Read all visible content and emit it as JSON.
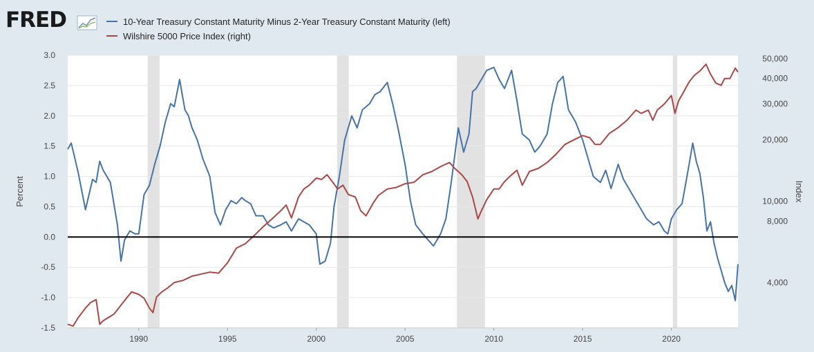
{
  "brand": {
    "logo_text": "FRED",
    "logo_icon": "chart-line-icon"
  },
  "chart_data": {
    "type": "line",
    "title": "",
    "xlim": [
      1986.0,
      2023.75
    ],
    "ylim_left": [
      -1.5,
      3.0
    ],
    "ylim_right_log": [
      2400,
      52000
    ],
    "grid": true,
    "legend_position": "top-left",
    "ylabel_left": "Percent",
    "ylabel_right": "Index",
    "x_tick_labels": [
      {
        "x": 1990,
        "label": "1990"
      },
      {
        "x": 1995,
        "label": "1995"
      },
      {
        "x": 2000,
        "label": "2000"
      },
      {
        "x": 2005,
        "label": "2005"
      },
      {
        "x": 2010,
        "label": "2010"
      },
      {
        "x": 2015,
        "label": "2015"
      },
      {
        "x": 2020,
        "label": "2020"
      }
    ],
    "y_left_ticks": [
      {
        "v": 3.0,
        "label": "3.0"
      },
      {
        "v": 2.5,
        "label": "2.5"
      },
      {
        "v": 2.0,
        "label": "2.0"
      },
      {
        "v": 1.5,
        "label": "1.5"
      },
      {
        "v": 1.0,
        "label": "1.0"
      },
      {
        "v": 0.5,
        "label": "0.5"
      },
      {
        "v": 0.0,
        "label": "0.0"
      },
      {
        "v": -0.5,
        "label": "-0.5"
      },
      {
        "v": -1.0,
        "label": "-1.0"
      },
      {
        "v": -1.5,
        "label": "-1.5"
      }
    ],
    "y_right_ticks": [
      {
        "v": 50000,
        "label": "50,000"
      },
      {
        "v": 40000,
        "label": "40,000"
      },
      {
        "v": 30000,
        "label": "30,000"
      },
      {
        "v": 20000,
        "label": "20,000"
      },
      {
        "v": 10000,
        "label": "10,000"
      },
      {
        "v": 8000,
        "label": "8,000"
      },
      {
        "v": 4000,
        "label": "4,000"
      }
    ],
    "recessions": [
      [
        1990.5,
        1991.17
      ],
      [
        2001.17,
        2001.83
      ],
      [
        2007.92,
        2009.5
      ],
      [
        2020.08,
        2020.33
      ]
    ],
    "zero_line": 0,
    "series": [
      {
        "name": "10-Year Treasury Constant Maturity Minus 2-Year Treasury Constant Maturity (left)",
        "axis": "left",
        "color": "#4572a7",
        "x": [
          1986.0,
          1986.2,
          1986.4,
          1986.6,
          1987.0,
          1987.2,
          1987.4,
          1987.6,
          1987.8,
          1988.0,
          1988.4,
          1988.8,
          1989.0,
          1989.2,
          1989.5,
          1989.8,
          1990.0,
          1990.3,
          1990.6,
          1990.9,
          1991.2,
          1991.5,
          1991.8,
          1992.0,
          1992.3,
          1992.6,
          1992.8,
          1993.0,
          1993.3,
          1993.6,
          1994.0,
          1994.3,
          1994.6,
          1994.9,
          1995.2,
          1995.5,
          1995.8,
          1996.0,
          1996.3,
          1996.6,
          1997.0,
          1997.3,
          1997.6,
          1998.0,
          1998.3,
          1998.6,
          1999.0,
          1999.3,
          1999.6,
          2000.0,
          2000.2,
          2000.5,
          2000.8,
          2001.0,
          2001.3,
          2001.6,
          2002.0,
          2002.3,
          2002.6,
          2003.0,
          2003.3,
          2003.6,
          2004.0,
          2004.3,
          2004.6,
          2005.0,
          2005.3,
          2005.6,
          2006.0,
          2006.3,
          2006.6,
          2007.0,
          2007.3,
          2007.6,
          2008.0,
          2008.3,
          2008.6,
          2008.8,
          2009.0,
          2009.3,
          2009.6,
          2010.0,
          2010.3,
          2010.6,
          2011.0,
          2011.3,
          2011.6,
          2012.0,
          2012.3,
          2012.6,
          2013.0,
          2013.3,
          2013.6,
          2013.9,
          2014.2,
          2014.6,
          2015.0,
          2015.3,
          2015.6,
          2016.0,
          2016.3,
          2016.6,
          2017.0,
          2017.3,
          2017.6,
          2018.0,
          2018.3,
          2018.6,
          2019.0,
          2019.3,
          2019.6,
          2019.8,
          2020.0,
          2020.3,
          2020.6,
          2021.0,
          2021.2,
          2021.4,
          2021.6,
          2021.8,
          2022.0,
          2022.2,
          2022.4,
          2022.6,
          2022.8,
          2023.0,
          2023.2,
          2023.4,
          2023.6,
          2023.75
        ],
        "values": [
          1.45,
          1.55,
          1.3,
          1.05,
          0.45,
          0.7,
          0.95,
          0.9,
          1.25,
          1.1,
          0.9,
          0.2,
          -0.4,
          -0.05,
          0.1,
          0.05,
          0.05,
          0.7,
          0.85,
          1.2,
          1.5,
          1.9,
          2.2,
          2.15,
          2.6,
          2.1,
          2.0,
          1.8,
          1.6,
          1.3,
          1.0,
          0.4,
          0.2,
          0.45,
          0.6,
          0.55,
          0.65,
          0.6,
          0.55,
          0.35,
          0.35,
          0.2,
          0.15,
          0.2,
          0.25,
          0.1,
          0.3,
          0.25,
          0.2,
          0.05,
          -0.45,
          -0.4,
          -0.1,
          0.5,
          1.0,
          1.6,
          2.0,
          1.8,
          2.1,
          2.2,
          2.35,
          2.4,
          2.55,
          2.2,
          1.8,
          1.2,
          0.6,
          0.2,
          0.05,
          -0.05,
          -0.15,
          0.05,
          0.3,
          0.9,
          1.8,
          1.4,
          1.7,
          2.4,
          2.45,
          2.6,
          2.75,
          2.8,
          2.6,
          2.45,
          2.75,
          2.25,
          1.7,
          1.6,
          1.4,
          1.5,
          1.7,
          2.2,
          2.55,
          2.65,
          2.1,
          1.9,
          1.6,
          1.3,
          1.0,
          0.9,
          1.1,
          0.8,
          1.2,
          0.95,
          0.8,
          0.6,
          0.45,
          0.3,
          0.2,
          0.25,
          0.1,
          0.05,
          0.3,
          0.45,
          0.55,
          1.2,
          1.55,
          1.25,
          1.05,
          0.65,
          0.1,
          0.25,
          -0.1,
          -0.35,
          -0.55,
          -0.75,
          -0.9,
          -0.8,
          -1.05,
          -0.45
        ]
      },
      {
        "name": "Wilshire 5000 Price Index (right)",
        "axis": "right",
        "color": "#aa4643",
        "x": [
          1986.0,
          1986.3,
          1986.6,
          1987.0,
          1987.3,
          1987.6,
          1987.8,
          1988.0,
          1988.3,
          1988.6,
          1989.0,
          1989.3,
          1989.6,
          1990.0,
          1990.3,
          1990.6,
          1990.8,
          1991.0,
          1991.3,
          1991.6,
          1992.0,
          1992.5,
          1993.0,
          1993.5,
          1994.0,
          1994.5,
          1995.0,
          1995.5,
          1996.0,
          1996.5,
          1997.0,
          1997.5,
          1998.0,
          1998.3,
          1998.6,
          1999.0,
          1999.3,
          1999.6,
          2000.0,
          2000.3,
          2000.6,
          2000.9,
          2001.2,
          2001.5,
          2001.8,
          2002.2,
          2002.5,
          2002.8,
          2003.2,
          2003.5,
          2004.0,
          2004.5,
          2005.0,
          2005.5,
          2006.0,
          2006.5,
          2007.0,
          2007.5,
          2007.8,
          2008.2,
          2008.5,
          2008.8,
          2009.1,
          2009.3,
          2009.6,
          2010.0,
          2010.3,
          2010.6,
          2011.0,
          2011.3,
          2011.6,
          2012.0,
          2012.5,
          2013.0,
          2013.5,
          2014.0,
          2014.5,
          2015.0,
          2015.4,
          2015.7,
          2016.0,
          2016.5,
          2017.0,
          2017.5,
          2018.0,
          2018.3,
          2018.7,
          2018.95,
          2019.2,
          2019.6,
          2020.0,
          2020.2,
          2020.4,
          2020.7,
          2021.0,
          2021.3,
          2021.6,
          2021.95,
          2022.2,
          2022.5,
          2022.8,
          2023.0,
          2023.3,
          2023.6,
          2023.75
        ],
        "values": [
          2500,
          2450,
          2700,
          3000,
          3200,
          3300,
          2500,
          2600,
          2700,
          2800,
          3100,
          3350,
          3600,
          3500,
          3350,
          3000,
          2850,
          3400,
          3600,
          3750,
          4000,
          4100,
          4300,
          4400,
          4500,
          4450,
          5000,
          5900,
          6200,
          6800,
          7500,
          8200,
          9000,
          9600,
          8300,
          10500,
          11500,
          12000,
          13000,
          12800,
          13500,
          12500,
          11500,
          12000,
          10800,
          10500,
          9000,
          8500,
          9800,
          10700,
          11500,
          11700,
          12200,
          12400,
          13500,
          14000,
          14800,
          15500,
          14500,
          13500,
          12500,
          10500,
          8200,
          9000,
          10200,
          11500,
          11500,
          12500,
          13500,
          14200,
          12000,
          14000,
          14500,
          15500,
          17000,
          19000,
          20000,
          21000,
          20500,
          19000,
          19000,
          21500,
          23000,
          25000,
          28000,
          27000,
          28000,
          25000,
          28000,
          30000,
          33000,
          27000,
          31000,
          34500,
          38500,
          41500,
          43500,
          47000,
          42000,
          38000,
          37000,
          40000,
          40000,
          45000,
          43000
        ]
      }
    ]
  }
}
